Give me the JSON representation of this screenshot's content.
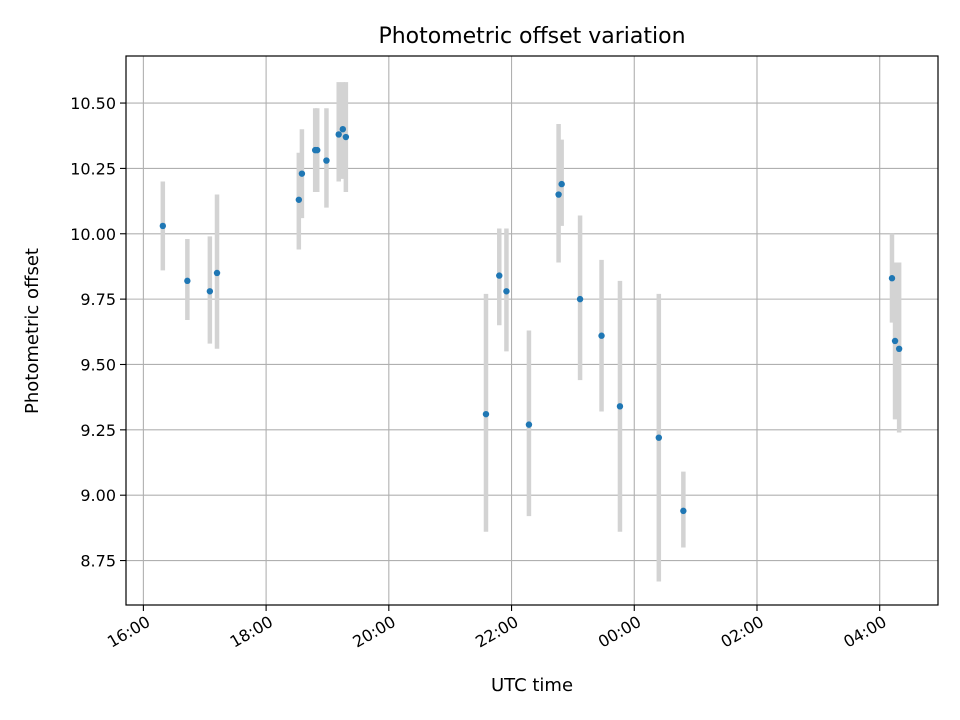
{
  "chart_data": {
    "type": "scatter",
    "title": "Photometric offset variation",
    "xlabel": "UTC time",
    "ylabel": "Photometric offset",
    "x_unit": "UTC time (hours, continuing past midnight)",
    "xlim": [
      "15:43",
      "28:57"
    ],
    "ylim": [
      8.58,
      10.68
    ],
    "grid": true,
    "x_ticks": [
      {
        "value": "16:00",
        "label": "16:00"
      },
      {
        "value": "18:00",
        "label": "18:00"
      },
      {
        "value": "20:00",
        "label": "20:00"
      },
      {
        "value": "22:00",
        "label": "22:00"
      },
      {
        "value": "24:00",
        "label": "00:00"
      },
      {
        "value": "26:00",
        "label": "02:00"
      },
      {
        "value": "28:00",
        "label": "04:00"
      }
    ],
    "y_ticks": [
      {
        "value": 8.75,
        "label": "8.75"
      },
      {
        "value": 9.0,
        "label": "9.00"
      },
      {
        "value": 9.25,
        "label": "9.25"
      },
      {
        "value": 9.5,
        "label": "9.50"
      },
      {
        "value": 9.75,
        "label": "9.75"
      },
      {
        "value": 10.0,
        "label": "10.00"
      },
      {
        "value": 10.25,
        "label": "10.25"
      },
      {
        "value": 10.5,
        "label": "10.50"
      }
    ],
    "colors": {
      "point": "#1f77b4",
      "errorbar": "#d3d3d3",
      "grid": "#b0b0b0"
    },
    "points": [
      {
        "x": "16:19",
        "y": 10.03,
        "yerr": [
          9.86,
          10.2
        ]
      },
      {
        "x": "16:43",
        "y": 9.82,
        "yerr": [
          9.67,
          9.98
        ]
      },
      {
        "x": "17:05",
        "y": 9.78,
        "yerr": [
          9.58,
          9.99
        ]
      },
      {
        "x": "17:12",
        "y": 9.85,
        "yerr": [
          9.56,
          10.15
        ]
      },
      {
        "x": "18:32",
        "y": 10.13,
        "yerr": [
          9.94,
          10.31
        ]
      },
      {
        "x": "18:35",
        "y": 10.23,
        "yerr": [
          10.06,
          10.4
        ]
      },
      {
        "x": "18:48",
        "y": 10.32,
        "yerr": [
          10.16,
          10.48
        ]
      },
      {
        "x": "18:50",
        "y": 10.32,
        "yerr": [
          10.16,
          10.48
        ]
      },
      {
        "x": "18:59",
        "y": 10.28,
        "yerr": [
          10.1,
          10.48
        ]
      },
      {
        "x": "19:11",
        "y": 10.38,
        "yerr": [
          10.2,
          10.58
        ]
      },
      {
        "x": "19:15",
        "y": 10.4,
        "yerr": [
          10.21,
          10.58
        ]
      },
      {
        "x": "19:18",
        "y": 10.37,
        "yerr": [
          10.16,
          10.58
        ]
      },
      {
        "x": "21:35",
        "y": 9.31,
        "yerr": [
          8.86,
          9.77
        ]
      },
      {
        "x": "21:48",
        "y": 9.84,
        "yerr": [
          9.65,
          10.02
        ]
      },
      {
        "x": "21:55",
        "y": 9.78,
        "yerr": [
          9.55,
          10.02
        ]
      },
      {
        "x": "22:17",
        "y": 9.27,
        "yerr": [
          8.92,
          9.63
        ]
      },
      {
        "x": "22:46",
        "y": 10.15,
        "yerr": [
          9.89,
          10.42
        ]
      },
      {
        "x": "22:49",
        "y": 10.19,
        "yerr": [
          10.03,
          10.36
        ]
      },
      {
        "x": "23:07",
        "y": 9.75,
        "yerr": [
          9.44,
          10.07
        ]
      },
      {
        "x": "23:28",
        "y": 9.61,
        "yerr": [
          9.32,
          9.9
        ]
      },
      {
        "x": "23:46",
        "y": 9.34,
        "yerr": [
          8.86,
          9.82
        ]
      },
      {
        "x": "24:24",
        "y": 9.22,
        "yerr": [
          8.67,
          9.77
        ]
      },
      {
        "x": "24:48",
        "y": 8.94,
        "yerr": [
          8.8,
          9.09
        ]
      },
      {
        "x": "28:12",
        "y": 9.83,
        "yerr": [
          9.66,
          10.0
        ]
      },
      {
        "x": "28:15",
        "y": 9.59,
        "yerr": [
          9.29,
          9.89
        ]
      },
      {
        "x": "28:19",
        "y": 9.56,
        "yerr": [
          9.24,
          9.89
        ]
      }
    ]
  }
}
